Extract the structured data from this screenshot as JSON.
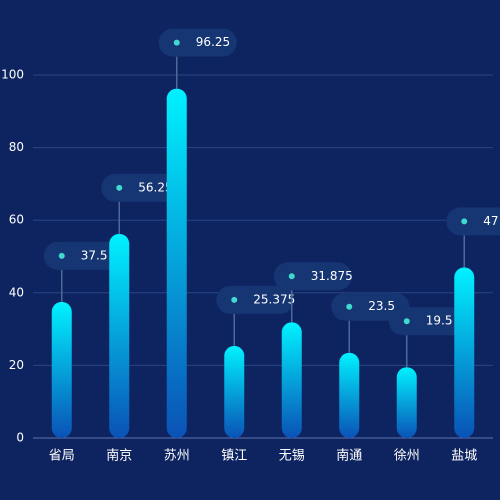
{
  "chart_data": {
    "type": "bar",
    "categories": [
      "省局",
      "南京",
      "苏州",
      "镇江",
      "无锡",
      "南通",
      "徐州",
      "盐城"
    ],
    "values": [
      37.5,
      56.25,
      96.25,
      25.375,
      31.875,
      23.5,
      19.5,
      47
    ],
    "gradient": [
      "#00f2ff",
      "#0a52b6"
    ],
    "ylim": [
      0,
      100
    ],
    "yticks": [
      0,
      20,
      40,
      60,
      80,
      100
    ],
    "grid": true
  }
}
